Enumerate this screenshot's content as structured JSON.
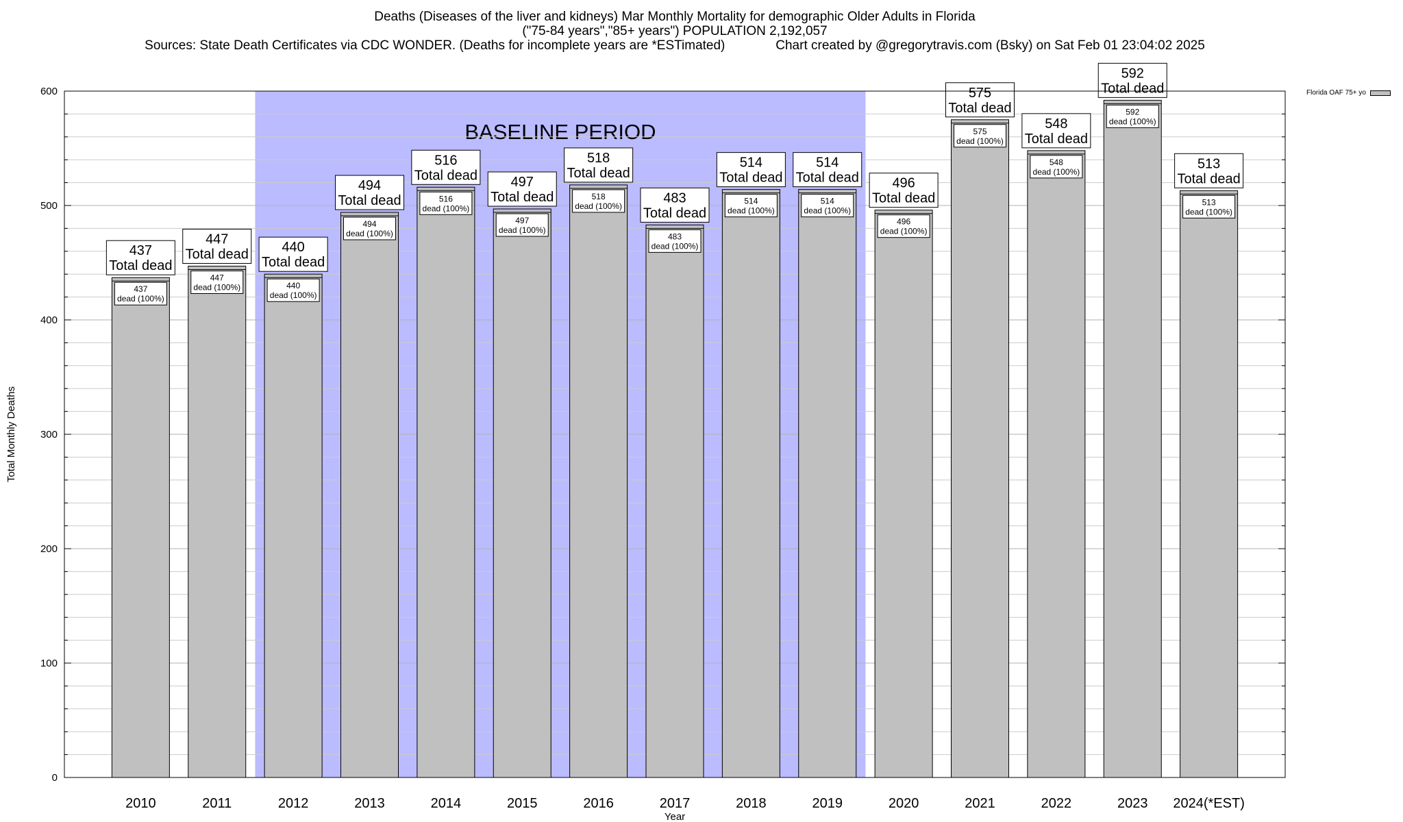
{
  "title": {
    "line1": "Deaths (Diseases of the liver and kidneys) Mar Monthly Mortality for demographic Older Adults in Florida",
    "line2": "(\"75-84 years\",\"85+ years\") POPULATION 2,192,057",
    "line3": "Sources: State Death Certificates via CDC WONDER. (Deaths for incomplete years are *ESTimated)              Chart created by @gregorytravis.com (Bsky) on Sat Feb 01 23:04:02 2025"
  },
  "legend": {
    "label": "Florida OAF 75+ yo",
    "swatch_color": "#c0c0c0"
  },
  "chart_data": {
    "type": "bar",
    "title": "Deaths (Diseases of the liver and kidneys) Mar Monthly Mortality for demographic Older Adults in Florida",
    "xlabel": "Year",
    "ylabel": "Total Monthly Deaths",
    "ylim": [
      0,
      600
    ],
    "yticks": [
      0,
      100,
      200,
      300,
      400,
      500,
      600
    ],
    "grid": true,
    "legend_position": "top-right",
    "categories": [
      "2010",
      "2011",
      "2012",
      "2013",
      "2014",
      "2015",
      "2016",
      "2017",
      "2018",
      "2019",
      "2020",
      "2021",
      "2022",
      "2023",
      "2024(*EST)"
    ],
    "series": [
      {
        "name": "Florida OAF 75+ yo",
        "values": [
          437,
          447,
          440,
          494,
          516,
          497,
          518,
          483,
          514,
          514,
          496,
          575,
          548,
          592,
          513
        ]
      }
    ],
    "total_label": "Total dead",
    "inner_label": "dead (100%)",
    "baseline": {
      "label": "BASELINE PERIOD",
      "from": "2012",
      "to": "2019",
      "color": "#bbbbff"
    },
    "bar_color": "#c0c0c0"
  }
}
